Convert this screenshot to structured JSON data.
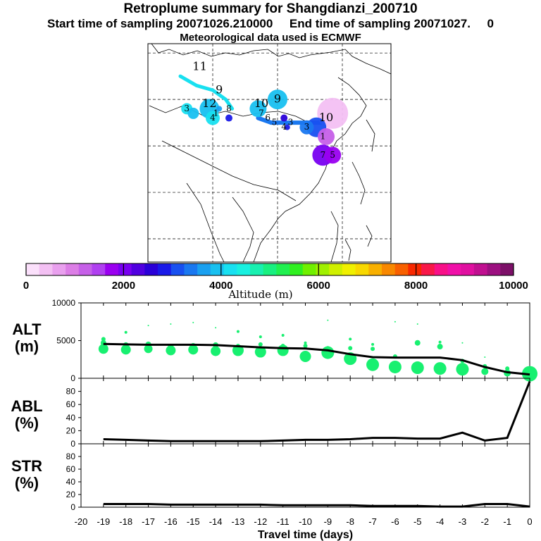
{
  "header": {
    "title": "Retroplume summary for Shangdianzi_200710",
    "subtitle": "Start time of sampling 20071026.210000     End time of sampling 20071027.     0",
    "met": "Meteorological data used is ECMWF"
  },
  "colors": {
    "altitude_scale": [
      "#fbe0fb",
      "#f3c0f3",
      "#e9a0ee",
      "#dc7ee6",
      "#c660e8",
      "#b040f0",
      "#9a00f0",
      "#7800f0",
      "#5000e0",
      "#2a00d8",
      "#1a1ae8",
      "#1850f0",
      "#1a78f0",
      "#1aa0f0",
      "#18c0f0",
      "#18e0f0",
      "#18f0e0",
      "#18f0b0",
      "#18f080",
      "#20f050",
      "#30f020",
      "#70f000",
      "#a0f000",
      "#d0f000",
      "#f0f000",
      "#f8d800",
      "#f8b000",
      "#f88800",
      "#f86000",
      "#f82800",
      "#f81848",
      "#f81088",
      "#f010a8",
      "#e010a0",
      "#c01090",
      "#9c1080",
      "#7c1068"
    ],
    "track_line": "#18e0f0",
    "track_line2": "#1a78f0",
    "scatter_green": "#18f070"
  },
  "colorbar": {
    "ticks": [
      "0",
      "2000",
      "4000",
      "6000",
      "8000",
      "10000"
    ],
    "label": "Altitude (m)"
  },
  "map_labels": [
    {
      "text": "11",
      "lon": 76,
      "lat": 47
    },
    {
      "text": "9",
      "lon": 82,
      "lat": 42
    },
    {
      "text": "9",
      "lon": 100,
      "lat": 40
    },
    {
      "text": "10",
      "lon": 95,
      "lat": 39
    },
    {
      "text": "12",
      "lon": 79,
      "lat": 39
    },
    {
      "text": "8",
      "lon": 85,
      "lat": 38
    },
    {
      "text": "3",
      "lon": 72,
      "lat": 38
    },
    {
      "text": "1",
      "lon": 81,
      "lat": 37
    },
    {
      "text": "4",
      "lon": 80,
      "lat": 36
    },
    {
      "text": "7",
      "lon": 95,
      "lat": 37
    },
    {
      "text": "6",
      "lon": 97,
      "lat": 36
    },
    {
      "text": "5",
      "lon": 99,
      "lat": 35
    },
    {
      "text": "4",
      "lon": 102,
      "lat": 34
    },
    {
      "text": "3",
      "lon": 104,
      "lat": 35
    },
    {
      "text": "3",
      "lon": 109,
      "lat": 34
    },
    {
      "text": "10",
      "lon": 115,
      "lat": 36
    },
    {
      "text": "1",
      "lon": 114,
      "lat": 32
    },
    {
      "text": "7",
      "lon": 114,
      "lat": 28
    },
    {
      "text": "5",
      "lon": 117,
      "lat": 28
    }
  ],
  "chart_data": [
    {
      "type": "scatter",
      "name": "ALT",
      "ylabel": "ALT\n(m)",
      "xlabel": "Travel time (days)",
      "xlim": [
        -20,
        0
      ],
      "ylim": [
        0,
        10000
      ],
      "yticks": [
        0,
        5000,
        10000
      ],
      "x": [
        -19,
        -18,
        -17,
        -16,
        -15,
        -14,
        -13,
        -12,
        -11,
        -10,
        -9,
        -8,
        -7,
        -6,
        -5,
        -4,
        -3,
        -2,
        -1,
        0
      ],
      "mean_altitude": [
        4550,
        4500,
        4450,
        4450,
        4450,
        4400,
        4250,
        4100,
        4000,
        3950,
        3700,
        3200,
        2800,
        2750,
        2750,
        2750,
        2400,
        1500,
        800,
        500
      ],
      "cluster_altitudes": [
        [
          3900,
          4700,
          5200
        ],
        [
          3800,
          4400,
          6100
        ],
        [
          3900,
          4500,
          7000
        ],
        [
          3700,
          4200,
          7200
        ],
        [
          3800,
          4300,
          7400
        ],
        [
          3600,
          4400,
          6700
        ],
        [
          3700,
          4300,
          6200
        ],
        [
          3500,
          4500,
          5500
        ],
        [
          3700,
          4300,
          5700
        ],
        [
          2900,
          4300,
          4700
        ],
        [
          3400,
          4000,
          7700
        ],
        [
          2600,
          4000,
          5200
        ],
        [
          1800,
          3900,
          4500
        ],
        [
          1500,
          2900,
          7500
        ],
        [
          1400,
          4700,
          7200
        ],
        [
          1300,
          4200,
          4800
        ],
        [
          1200,
          2300,
          4700
        ],
        [
          900,
          1600,
          2800
        ],
        [
          700,
          1300
        ],
        [
          600,
          900
        ]
      ],
      "cluster_sizes": [
        [
          7,
          4,
          3
        ],
        [
          7,
          4,
          2
        ],
        [
          6,
          4,
          1
        ],
        [
          7,
          4,
          1
        ],
        [
          7,
          4,
          1
        ],
        [
          7,
          4,
          1
        ],
        [
          8,
          3,
          2
        ],
        [
          8,
          3,
          2
        ],
        [
          8,
          3,
          2
        ],
        [
          8,
          3,
          2
        ],
        [
          9,
          3,
          1
        ],
        [
          9,
          3,
          2
        ],
        [
          9,
          3,
          2
        ],
        [
          9,
          3,
          1
        ],
        [
          9,
          4,
          1
        ],
        [
          9,
          4,
          2
        ],
        [
          9,
          3,
          1
        ],
        [
          5,
          3,
          1
        ],
        [
          5,
          3
        ],
        [
          11,
          4
        ]
      ]
    },
    {
      "type": "line",
      "name": "ABL",
      "ylabel": "ABL\n(%)",
      "xlim": [
        -20,
        0
      ],
      "ylim": [
        0,
        100
      ],
      "yticks": [
        0,
        20,
        40,
        60,
        80
      ],
      "x": [
        -19,
        -18,
        -17,
        -16,
        -15,
        -14,
        -13,
        -12,
        -11,
        -10,
        -9,
        -8,
        -7,
        -6,
        -5,
        -4,
        -3,
        -2,
        -1,
        0
      ],
      "values": [
        7,
        6,
        5,
        4,
        4,
        4,
        4,
        4,
        5,
        6,
        6,
        7,
        9,
        9,
        8,
        8,
        17,
        5,
        9,
        95
      ]
    },
    {
      "type": "line",
      "name": "STR",
      "ylabel": "STR\n(%)",
      "xlabel": "Travel time (days)",
      "xlim": [
        -20,
        0
      ],
      "ylim": [
        0,
        100
      ],
      "yticks": [
        0,
        20,
        40,
        60,
        80
      ],
      "xticks": [
        -20,
        -19,
        -18,
        -17,
        -16,
        -15,
        -14,
        -13,
        -12,
        -11,
        -10,
        -9,
        -8,
        -7,
        -6,
        -5,
        -4,
        -3,
        -2,
        -1,
        0
      ],
      "x": [
        -19,
        -18,
        -17,
        -16,
        -15,
        -14,
        -13,
        -12,
        -11,
        -10,
        -9,
        -8,
        -7,
        -6,
        -5,
        -4,
        -3,
        -2,
        -1,
        0
      ],
      "values": [
        5,
        5,
        5,
        4,
        4,
        4,
        4,
        4,
        3,
        3,
        3,
        3,
        2,
        2,
        2,
        1,
        1,
        5,
        5,
        1
      ]
    }
  ],
  "map_track": {
    "cyan_path": [
      [
        70,
        45
      ],
      [
        75,
        43
      ],
      [
        80,
        42
      ],
      [
        84,
        40
      ],
      [
        86,
        38
      ]
    ],
    "blue_path": [
      [
        94,
        36
      ],
      [
        98,
        35
      ],
      [
        103,
        35
      ],
      [
        107,
        35
      ],
      [
        111,
        35
      ],
      [
        114,
        35
      ]
    ],
    "blobs": [
      {
        "lon": 117,
        "lat": 37,
        "r": 22,
        "color": "#f3c0f3"
      },
      {
        "lon": 100,
        "lat": 40,
        "r": 14,
        "color": "#18c0f0"
      },
      {
        "lon": 94,
        "lat": 38,
        "r": 12,
        "color": "#18c0f0"
      },
      {
        "lon": 79,
        "lat": 38,
        "r": 14,
        "color": "#18c0f0"
      },
      {
        "lon": 72,
        "lat": 38,
        "r": 8,
        "color": "#18e0f0"
      },
      {
        "lon": 74,
        "lat": 37,
        "r": 8,
        "color": "#18c0f0"
      },
      {
        "lon": 80,
        "lat": 36,
        "r": 10,
        "color": "#18e0f0"
      },
      {
        "lon": 112,
        "lat": 34,
        "r": 14,
        "color": "#1850f0"
      },
      {
        "lon": 109,
        "lat": 34,
        "r": 10,
        "color": "#1a78f0"
      },
      {
        "lon": 115,
        "lat": 32,
        "r": 12,
        "color": "#c660e8"
      },
      {
        "lon": 114,
        "lat": 28,
        "r": 15,
        "color": "#7800f0"
      },
      {
        "lon": 117,
        "lat": 28,
        "r": 12,
        "color": "#9a00f0"
      },
      {
        "lon": 85,
        "lat": 36,
        "r": 5,
        "color": "#1a1ae8"
      },
      {
        "lon": 82,
        "lat": 38,
        "r": 4,
        "color": "#1aa0f0"
      },
      {
        "lon": 102,
        "lat": 36,
        "r": 5,
        "color": "#2a00d8"
      },
      {
        "lon": 103,
        "lat": 34,
        "r": 4,
        "color": "#1a1ae8"
      }
    ]
  }
}
